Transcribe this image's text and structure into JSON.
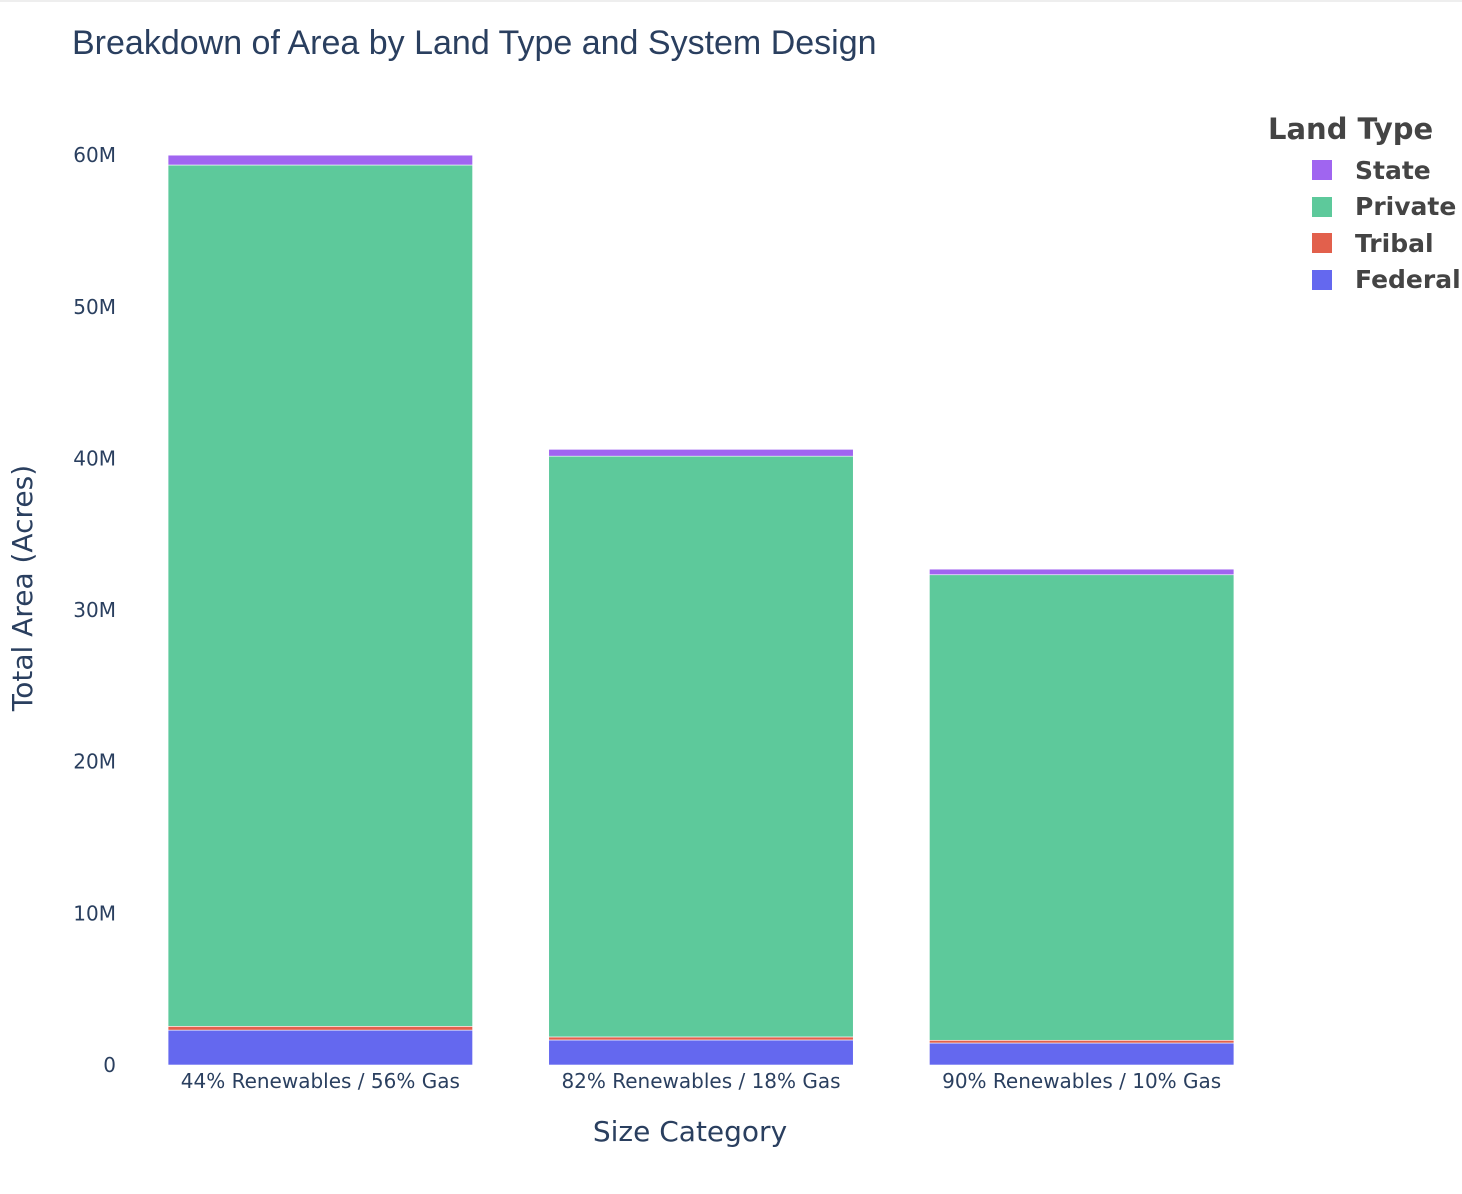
{
  "colors": {
    "State": "#a065f0",
    "Private": "#5dc99b",
    "Tribal": "#e2604c",
    "Federal": "#6468ef"
  },
  "chart_data": {
    "type": "bar",
    "stacked": true,
    "title": "Breakdown of Area by Land Type and System Design",
    "xlabel": "Size Category",
    "ylabel": "Total Area (Acres)",
    "ylim": [
      0,
      61000000
    ],
    "yticks": [
      0,
      10000000,
      20000000,
      30000000,
      40000000,
      50000000,
      60000000
    ],
    "ytick_labels": [
      "0",
      "10M",
      "20M",
      "30M",
      "40M",
      "50M",
      "60M"
    ],
    "grid": false,
    "legend_title": "Land Type",
    "legend_position": "top-right",
    "legend_order": [
      "State",
      "Private",
      "Tribal",
      "Federal"
    ],
    "categories": [
      "44% Renewables / 56% Gas",
      "82% Renewables / 18% Gas",
      "90% Renewables / 10% Gas"
    ],
    "series": [
      {
        "name": "Federal",
        "values": [
          2300000,
          1650000,
          1450000
        ]
      },
      {
        "name": "Tribal",
        "values": [
          250000,
          200000,
          180000
        ]
      },
      {
        "name": "Private",
        "values": [
          56800000,
          38300000,
          30700000
        ]
      },
      {
        "name": "State",
        "values": [
          650000,
          450000,
          370000
        ]
      }
    ]
  }
}
